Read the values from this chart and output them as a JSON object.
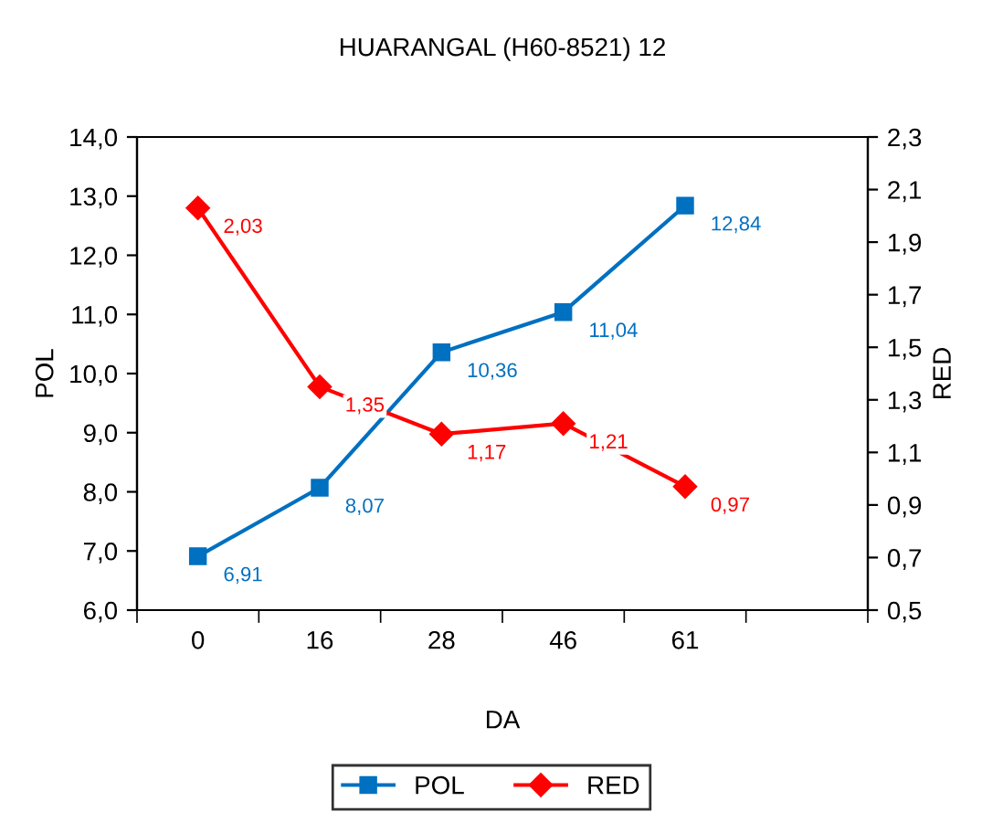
{
  "chart_data": {
    "type": "line",
    "title": "HUARANGAL (H60-8521) 12",
    "xlabel": "DA",
    "ylabel": "POL",
    "y2label": "RED",
    "categories": [
      "0",
      "16",
      "28",
      "46",
      "61",
      null
    ],
    "series": [
      {
        "name": "POL",
        "color": "#0070c0",
        "marker": "square",
        "values": [
          6.91,
          8.07,
          10.36,
          11.04,
          12.84,
          null
        ],
        "value_labels": [
          "6,91",
          "8,07",
          "10,36",
          "11,04",
          "12,84",
          null
        ]
      },
      {
        "name": "RED",
        "color": "#ff0000",
        "marker": "diamond",
        "axis": "y2",
        "values": [
          2.03,
          1.35,
          1.17,
          1.21,
          0.97,
          null
        ],
        "value_labels": [
          "2,03",
          "1,35",
          "1,17",
          "1,21",
          "0,97",
          null
        ]
      }
    ],
    "ylim": [
      6.0,
      14.0
    ],
    "yticks": [
      {
        "value": 6,
        "label": "6,0"
      },
      {
        "value": 7,
        "label": "7,0"
      },
      {
        "value": 8,
        "label": "8,0"
      },
      {
        "value": 9,
        "label": "9,0"
      },
      {
        "value": 10,
        "label": "10,0"
      },
      {
        "value": 11,
        "label": "11,0"
      },
      {
        "value": 12,
        "label": "12,0"
      },
      {
        "value": 13,
        "label": "13,0"
      },
      {
        "value": 14,
        "label": "14,0"
      }
    ],
    "y2lim": [
      0.5,
      2.3
    ],
    "y2ticks": [
      {
        "value": 0.5,
        "label": "0,5"
      },
      {
        "value": 0.7,
        "label": "0,7"
      },
      {
        "value": 0.9,
        "label": "0,9"
      },
      {
        "value": 1.1,
        "label": "1,1"
      },
      {
        "value": 1.3,
        "label": "1,3"
      },
      {
        "value": 1.5,
        "label": "1,5"
      },
      {
        "value": 1.7,
        "label": "1,7"
      },
      {
        "value": 1.9,
        "label": "1,9"
      },
      {
        "value": 2.1,
        "label": "2,1"
      },
      {
        "value": 2.3,
        "label": "2,3"
      }
    ],
    "grid": false,
    "legend": "bottom",
    "line_style": "solid"
  }
}
